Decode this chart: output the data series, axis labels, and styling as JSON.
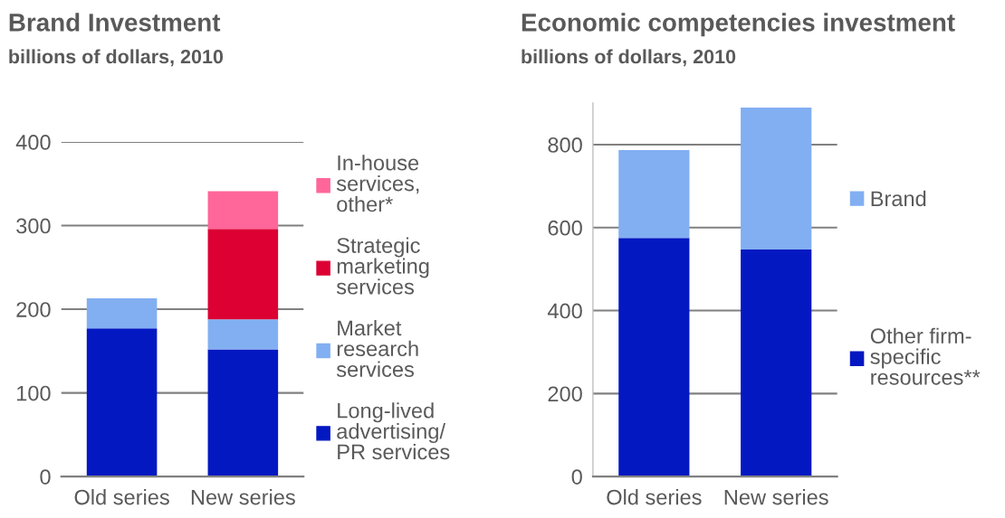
{
  "chart_data": [
    {
      "type": "bar",
      "title": "Brand Investment",
      "subtitle": "billions of dollars, 2010",
      "categories": [
        "Old series",
        "New series"
      ],
      "stacked": true,
      "ylim": [
        0,
        400
      ],
      "yticks": [
        0,
        100,
        200,
        300,
        400
      ],
      "grid": "y",
      "legend": "right",
      "series": [
        {
          "name": "Long-lived\nadvertising/\nPR services",
          "color": "#0418c2",
          "values": [
            177,
            152
          ]
        },
        {
          "name": "Market\nresearch\nservices",
          "color": "#82aff2",
          "values": [
            36,
            36
          ]
        },
        {
          "name": "Strategic\nmarketing\nservices",
          "color": "#dc0033",
          "values": [
            0,
            108
          ]
        },
        {
          "name": "In-house\nservices,\nother*",
          "color": "#ff6699",
          "values": [
            0,
            45
          ]
        }
      ]
    },
    {
      "type": "bar",
      "title": "Economic competencies investment",
      "subtitle": "billions of dollars, 2010",
      "categories": [
        "Old series",
        "New series"
      ],
      "stacked": true,
      "ylim": [
        0,
        900
      ],
      "yticks": [
        0,
        200,
        400,
        600,
        800
      ],
      "grid": "y",
      "legend": "right",
      "series": [
        {
          "name": "Other firm-\nspecific\nresources**",
          "color": "#0418c2",
          "values": [
            575,
            547
          ]
        },
        {
          "name": "Brand",
          "color": "#82aff2",
          "values": [
            212,
            342
          ]
        }
      ]
    }
  ]
}
